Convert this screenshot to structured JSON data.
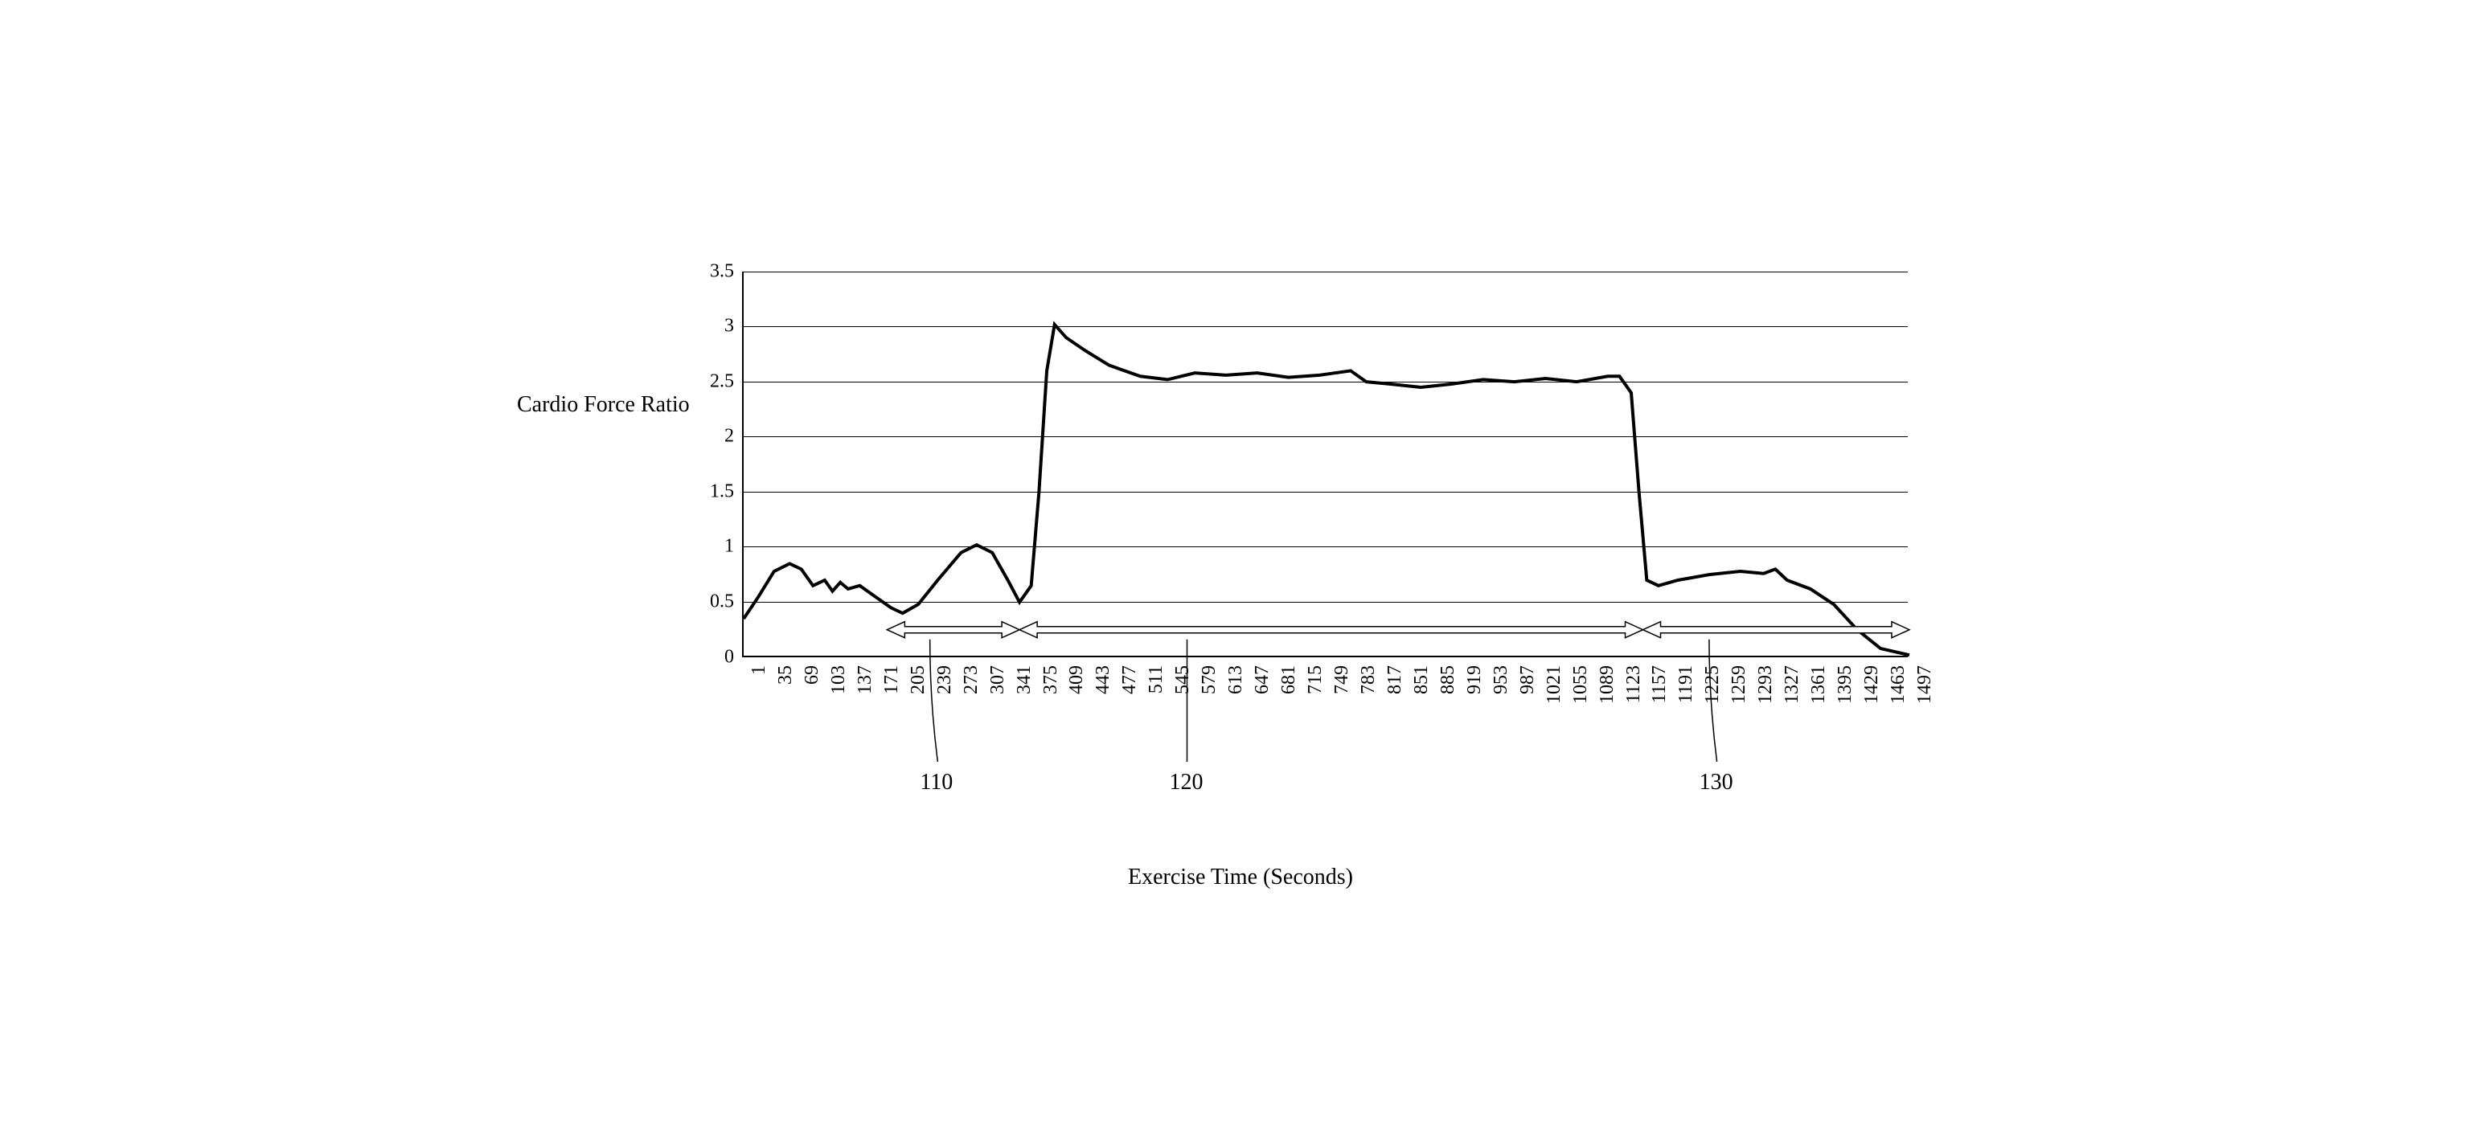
{
  "chart": {
    "type": "line",
    "y_label": "Cardio Force Ratio",
    "x_label": "Exercise Time (Seconds)",
    "ylim": [
      0,
      3.5
    ],
    "ytick_step": 0.5,
    "y_ticks": [
      0,
      0.5,
      1,
      1.5,
      2,
      2.5,
      3,
      3.5
    ],
    "x_ticks": [
      1,
      35,
      69,
      103,
      137,
      171,
      205,
      239,
      273,
      307,
      341,
      375,
      409,
      443,
      477,
      511,
      545,
      579,
      613,
      647,
      681,
      715,
      749,
      783,
      817,
      851,
      885,
      919,
      953,
      987,
      1021,
      1055,
      1089,
      1123,
      1157,
      1191,
      1225,
      1259,
      1293,
      1327,
      1361,
      1395,
      1429,
      1463,
      1497
    ],
    "x_min": 1,
    "x_max": 1497,
    "line_color": "#000000",
    "line_width": 4,
    "grid_color": "#000000",
    "background_color": "#ffffff",
    "title_fontsize": 28,
    "label_fontsize": 28,
    "tick_fontsize": 24,
    "series": [
      {
        "x": 1,
        "y": 0.35
      },
      {
        "x": 20,
        "y": 0.55
      },
      {
        "x": 40,
        "y": 0.78
      },
      {
        "x": 60,
        "y": 0.85
      },
      {
        "x": 75,
        "y": 0.8
      },
      {
        "x": 90,
        "y": 0.65
      },
      {
        "x": 105,
        "y": 0.7
      },
      {
        "x": 115,
        "y": 0.6
      },
      {
        "x": 125,
        "y": 0.68
      },
      {
        "x": 135,
        "y": 0.62
      },
      {
        "x": 150,
        "y": 0.65
      },
      {
        "x": 170,
        "y": 0.55
      },
      {
        "x": 190,
        "y": 0.45
      },
      {
        "x": 205,
        "y": 0.4
      },
      {
        "x": 225,
        "y": 0.48
      },
      {
        "x": 250,
        "y": 0.7
      },
      {
        "x": 280,
        "y": 0.95
      },
      {
        "x": 300,
        "y": 1.02
      },
      {
        "x": 320,
        "y": 0.95
      },
      {
        "x": 340,
        "y": 0.7
      },
      {
        "x": 355,
        "y": 0.5
      },
      {
        "x": 370,
        "y": 0.65
      },
      {
        "x": 380,
        "y": 1.5
      },
      {
        "x": 390,
        "y": 2.6
      },
      {
        "x": 400,
        "y": 3.02
      },
      {
        "x": 415,
        "y": 2.9
      },
      {
        "x": 440,
        "y": 2.78
      },
      {
        "x": 470,
        "y": 2.65
      },
      {
        "x": 510,
        "y": 2.55
      },
      {
        "x": 545,
        "y": 2.52
      },
      {
        "x": 580,
        "y": 2.58
      },
      {
        "x": 620,
        "y": 2.56
      },
      {
        "x": 660,
        "y": 2.58
      },
      {
        "x": 700,
        "y": 2.54
      },
      {
        "x": 740,
        "y": 2.56
      },
      {
        "x": 780,
        "y": 2.6
      },
      {
        "x": 800,
        "y": 2.5
      },
      {
        "x": 830,
        "y": 2.48
      },
      {
        "x": 870,
        "y": 2.45
      },
      {
        "x": 910,
        "y": 2.48
      },
      {
        "x": 950,
        "y": 2.52
      },
      {
        "x": 990,
        "y": 2.5
      },
      {
        "x": 1030,
        "y": 2.53
      },
      {
        "x": 1070,
        "y": 2.5
      },
      {
        "x": 1110,
        "y": 2.55
      },
      {
        "x": 1125,
        "y": 2.55
      },
      {
        "x": 1140,
        "y": 2.4
      },
      {
        "x": 1150,
        "y": 1.5
      },
      {
        "x": 1160,
        "y": 0.7
      },
      {
        "x": 1175,
        "y": 0.65
      },
      {
        "x": 1200,
        "y": 0.7
      },
      {
        "x": 1240,
        "y": 0.75
      },
      {
        "x": 1280,
        "y": 0.78
      },
      {
        "x": 1310,
        "y": 0.76
      },
      {
        "x": 1325,
        "y": 0.8
      },
      {
        "x": 1340,
        "y": 0.7
      },
      {
        "x": 1370,
        "y": 0.62
      },
      {
        "x": 1400,
        "y": 0.48
      },
      {
        "x": 1430,
        "y": 0.25
      },
      {
        "x": 1460,
        "y": 0.08
      },
      {
        "x": 1497,
        "y": 0.02
      }
    ],
    "range_arrows": [
      {
        "id": "arrow-110",
        "x_start": 185,
        "x_end": 355,
        "y": 0.25
      },
      {
        "id": "arrow-120",
        "x_start": 355,
        "x_end": 1155,
        "y": 0.25
      },
      {
        "id": "arrow-130",
        "x_start": 1155,
        "x_end": 1497,
        "y": 0.25
      }
    ],
    "callouts": [
      {
        "id": "110",
        "label": "110",
        "x_anchor": 240,
        "x_label": 250,
        "y_label": -140
      },
      {
        "id": "120",
        "label": "120",
        "x_anchor": 570,
        "x_label": 570,
        "y_label": -140
      },
      {
        "id": "130",
        "label": "130",
        "x_anchor": 1240,
        "x_label": 1250,
        "y_label": -140
      }
    ]
  }
}
